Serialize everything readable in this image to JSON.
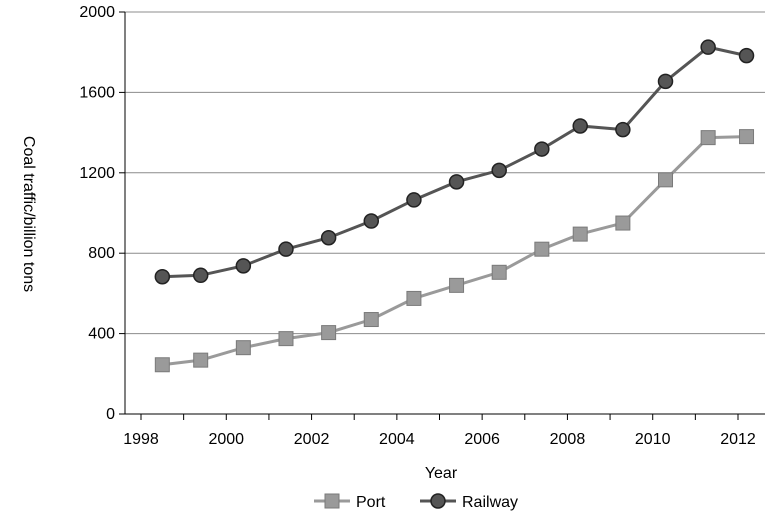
{
  "chart_data": {
    "type": "line",
    "xlabel": "Year",
    "ylabel": "Coal traffic/billion tons",
    "ylim": [
      0,
      2000
    ],
    "yticks": [
      0,
      400,
      800,
      1200,
      1600,
      2000
    ],
    "xlim": [
      1998,
      2012
    ],
    "xticks": [
      1998,
      2000,
      2002,
      2004,
      2006,
      2008,
      2010,
      2012
    ],
    "grid": "horizontal",
    "legend_position": "bottom",
    "series": [
      {
        "name": "Port",
        "color": "#9a9a9a",
        "marker": "square",
        "x": [
          1998.5,
          1999.4,
          2000.4,
          2001.4,
          2002.4,
          2003.4,
          2004.4,
          2005.4,
          2006.4,
          2007.4,
          2008.3,
          2009.3,
          2010.3,
          2011.3,
          2012.2
        ],
        "values": [
          245,
          268,
          330,
          375,
          405,
          470,
          575,
          640,
          705,
          820,
          895,
          950,
          1165,
          1375,
          1380
        ]
      },
      {
        "name": "Railway",
        "color": "#555555",
        "marker": "circle",
        "x": [
          1998.5,
          1999.4,
          2000.4,
          2001.4,
          2002.4,
          2003.4,
          2004.4,
          2005.4,
          2006.4,
          2007.4,
          2008.3,
          2009.3,
          2010.3,
          2011.3,
          2012.2
        ],
        "values": [
          683,
          690,
          737,
          820,
          877,
          960,
          1065,
          1155,
          1212,
          1318,
          1433,
          1415,
          1655,
          1825,
          1783
        ]
      }
    ]
  }
}
